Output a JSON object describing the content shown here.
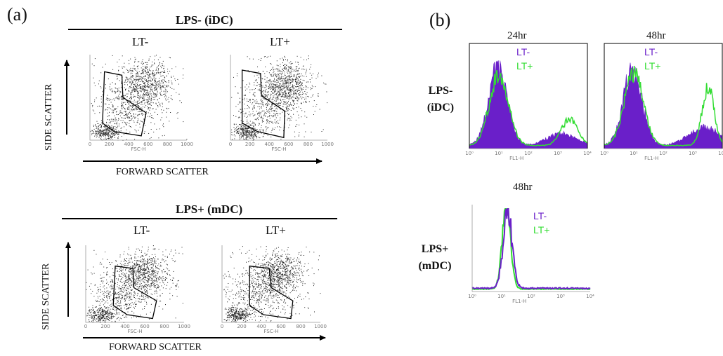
{
  "panel_a": {
    "letter": "(a)",
    "lps_minus": {
      "header": "LPS- (iDC)",
      "lt_minus": "LT-",
      "lt_plus": "LT+",
      "y_axis": "SIDE SCATTER",
      "x_axis": "FORWARD SCATTER"
    },
    "lps_plus": {
      "header": "LPS+ (mDC)",
      "lt_minus": "LT-",
      "lt_plus": "LT+",
      "y_axis": "SIDE SCATTER",
      "x_axis": "FORWARD SCATTER"
    },
    "scatter_x_label": "FSC-H",
    "scatter_ticks": [
      "0",
      "200",
      "400",
      "600",
      "800",
      "1000"
    ]
  },
  "panel_b": {
    "letter": "(b)",
    "time_24": "24hr",
    "time_48": "48hr",
    "time_48_bottom": "48hr",
    "row_lps_minus": [
      "LPS-",
      "(iDC)"
    ],
    "row_lps_plus": [
      "LPS+",
      "(mDC)"
    ],
    "legend_lt_minus": "LT-",
    "legend_lt_plus": "LT+",
    "hist_x_label": "FL1-H",
    "hist_ticks": [
      "10⁰",
      "10¹",
      "10²",
      "10³",
      "10⁴"
    ]
  },
  "colors": {
    "lt_minus": "#6a1fc9",
    "lt_plus": "#33dd33",
    "dots": "#222222"
  },
  "chart_data": [
    {
      "type": "scatter",
      "title": "LPS- (iDC) LT-",
      "xlabel": "FSC-H",
      "ylim": [
        0,
        1000
      ],
      "xlim": [
        0,
        1000
      ]
    },
    {
      "type": "scatter",
      "title": "LPS- (iDC) LT+",
      "xlabel": "FSC-H",
      "ylim": [
        0,
        1000
      ],
      "xlim": [
        0,
        1000
      ]
    },
    {
      "type": "scatter",
      "title": "LPS+ (mDC) LT-",
      "xlabel": "FSC-H",
      "ylim": [
        0,
        1000
      ],
      "xlim": [
        0,
        1000
      ]
    },
    {
      "type": "scatter",
      "title": "LPS+ (mDC) LT+",
      "xlabel": "FSC-H",
      "ylim": [
        0,
        1000
      ],
      "xlim": [
        0,
        1000
      ]
    },
    {
      "type": "area",
      "title": "24hr",
      "xlabel": "FL1-H",
      "log_x": true,
      "xlim": [
        1,
        10000
      ],
      "series": [
        {
          "name": "LT-",
          "peak_at": 10
        },
        {
          "name": "LT+",
          "peak_at": 3000
        }
      ]
    },
    {
      "type": "area",
      "title": "48hr",
      "xlabel": "FL1-H",
      "log_x": true,
      "xlim": [
        1,
        10000
      ],
      "series": [
        {
          "name": "LT-",
          "peak_at": 10
        },
        {
          "name": "LT+",
          "peak_at": 3000
        }
      ]
    },
    {
      "type": "area",
      "title": "48hr",
      "xlabel": "FL1-H",
      "log_x": true,
      "xlim": [
        1,
        10000
      ],
      "series": [
        {
          "name": "LT-",
          "peak_at": 15
        },
        {
          "name": "LT+",
          "peak_at": 15
        }
      ]
    }
  ]
}
